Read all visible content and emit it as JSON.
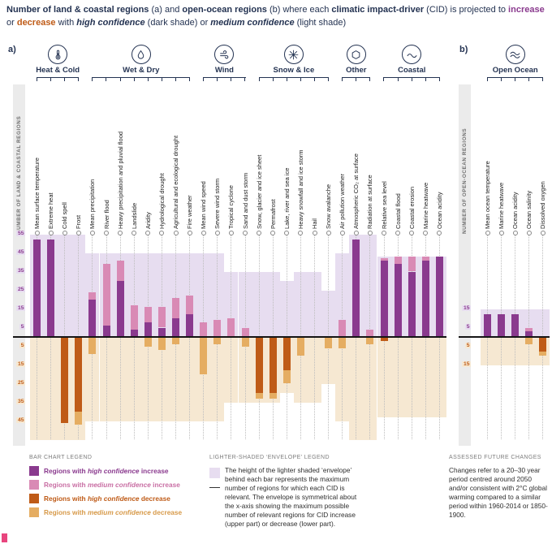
{
  "title": {
    "segments": [
      {
        "text": "Number of land & coastal regions",
        "style": "bold"
      },
      {
        "text": " (a) and ",
        "style": "regular"
      },
      {
        "text": "open-ocean regions",
        "style": "bold"
      },
      {
        "text": " (b) where each ",
        "style": "regular"
      },
      {
        "text": "climatic impact-driver",
        "style": "bold"
      },
      {
        "text": " (CID) is projected to ",
        "style": "regular"
      },
      {
        "text": "increase",
        "style": "bold-purple"
      },
      {
        "text": " or ",
        "style": "regular"
      },
      {
        "text": "decrease",
        "style": "bold-orange"
      },
      {
        "text": " with ",
        "style": "regular"
      },
      {
        "text": "high confidence",
        "style": "bold-italic"
      },
      {
        "text": " (dark shade) or ",
        "style": "regular"
      },
      {
        "text": "medium confidence",
        "style": "bold-italic"
      },
      {
        "text": " (light shade)",
        "style": "regular"
      }
    ]
  },
  "panels": {
    "a": {
      "label": "a)",
      "axis_label": "NUMBER OF LAND & COASTAL REGIONS"
    },
    "b": {
      "label": "b)",
      "axis_label": "NUMBER OF OPEN-OCEAN REGIONS"
    }
  },
  "colors": {
    "increase_high": "#8a3a8e",
    "increase_medium": "#d98ab5",
    "increase_envelope": "#e7ddf0",
    "decrease_high": "#bf5b17",
    "decrease_medium": "#e5ad62",
    "decrease_envelope": "#f6e8d2",
    "title_navy": "#243352"
  },
  "chart_data": {
    "type": "bar",
    "title": "Number of land & coastal regions (a) and open-ocean regions (b) where each climatic impact-driver (CID) is projected to increase or decrease with high confidence (dark shade) or medium confidence (light shade)",
    "units": "number of regions",
    "legend_position": "bottom",
    "y_axis": {
      "panel_a_upper_ticks": [
        55,
        45,
        35,
        25,
        15,
        5
      ],
      "panel_a_lower_ticks": [
        5,
        15,
        25,
        35,
        45
      ],
      "panel_b_upper_ticks": [
        15,
        5
      ],
      "panel_b_lower_ticks": [
        5,
        15
      ]
    },
    "panel_a": {
      "ylabel": "NUMBER OF LAND & COASTAL REGIONS",
      "groups": [
        {
          "name": "Heat & Cold",
          "icon": "thermometer-icon",
          "cids": [
            {
              "label": "Mean surface temperature",
              "increase_high": 52,
              "increase_medium_total": 52,
              "decrease_high": 0,
              "decrease_medium_total": 0,
              "envelope": 55
            },
            {
              "label": "Extreme heat",
              "increase_high": 52,
              "increase_medium_total": 52,
              "decrease_high": 0,
              "decrease_medium_total": 0,
              "envelope": 55
            },
            {
              "label": "Cold spell",
              "increase_high": 0,
              "increase_medium_total": 0,
              "decrease_high": 46,
              "decrease_medium_total": 46,
              "envelope": 55
            },
            {
              "label": "Frost",
              "increase_high": 0,
              "increase_medium_total": 0,
              "decrease_high": 40,
              "decrease_medium_total": 47,
              "envelope": 55
            }
          ]
        },
        {
          "name": "Wet & Dry",
          "icon": "droplet-icon",
          "cids": [
            {
              "label": "Mean precipitation",
              "increase_high": 20,
              "increase_medium_total": 24,
              "decrease_high": 0,
              "decrease_medium_total": 9,
              "envelope": 45
            },
            {
              "label": "River flood",
              "increase_high": 6,
              "increase_medium_total": 39,
              "decrease_high": 0,
              "decrease_medium_total": 0,
              "envelope": 45
            },
            {
              "label": "Heavy precipitation and pluvial flood",
              "increase_high": 30,
              "increase_medium_total": 41,
              "decrease_high": 0,
              "decrease_medium_total": 0,
              "envelope": 45
            },
            {
              "label": "Landslide",
              "increase_high": 4,
              "increase_medium_total": 17,
              "decrease_high": 0,
              "decrease_medium_total": 0,
              "envelope": 45
            },
            {
              "label": "Aridity",
              "increase_high": 8,
              "increase_medium_total": 16,
              "decrease_high": 0,
              "decrease_medium_total": 5,
              "envelope": 45
            },
            {
              "label": "Hydrological drought",
              "increase_high": 5,
              "increase_medium_total": 16,
              "decrease_high": 0,
              "decrease_medium_total": 7,
              "envelope": 45
            },
            {
              "label": "Agricultural and ecological drought",
              "increase_high": 10,
              "increase_medium_total": 21,
              "decrease_high": 0,
              "decrease_medium_total": 4,
              "envelope": 45
            },
            {
              "label": "Fire weather",
              "increase_high": 12,
              "increase_medium_total": 22,
              "decrease_high": 0,
              "decrease_medium_total": 0,
              "envelope": 45
            }
          ]
        },
        {
          "name": "Wind",
          "icon": "wind-icon",
          "cids": [
            {
              "label": "Mean wind speed",
              "increase_high": 0,
              "increase_medium_total": 8,
              "decrease_high": 0,
              "decrease_medium_total": 20,
              "envelope": 45
            },
            {
              "label": "Severe wind storm",
              "increase_high": 0,
              "increase_medium_total": 9,
              "decrease_high": 0,
              "decrease_medium_total": 4,
              "envelope": 45
            },
            {
              "label": "Tropical cyclone",
              "increase_high": 0,
              "increase_medium_total": 10,
              "decrease_high": 0,
              "decrease_medium_total": 0,
              "envelope": 35
            },
            {
              "label": "Sand and dust storm",
              "increase_high": 0,
              "increase_medium_total": 5,
              "decrease_high": 0,
              "decrease_medium_total": 5,
              "envelope": 35
            }
          ]
        },
        {
          "name": "Snow & Ice",
          "icon": "snowflake-icon",
          "cids": [
            {
              "label": "Snow, glacier and ice sheet",
              "increase_high": 0,
              "increase_medium_total": 0,
              "decrease_high": 30,
              "decrease_medium_total": 33,
              "envelope": 35
            },
            {
              "label": "Permafrost",
              "increase_high": 0,
              "increase_medium_total": 0,
              "decrease_high": 30,
              "decrease_medium_total": 33,
              "envelope": 35
            },
            {
              "label": "Lake, river and sea ice",
              "increase_high": 0,
              "increase_medium_total": 0,
              "decrease_high": 18,
              "decrease_medium_total": 25,
              "envelope": 30
            },
            {
              "label": "Heavy snowfall and ice storm",
              "increase_high": 0,
              "increase_medium_total": 0,
              "decrease_high": 0,
              "decrease_medium_total": 10,
              "envelope": 35
            },
            {
              "label": "Hail",
              "increase_high": 0,
              "increase_medium_total": 0,
              "decrease_high": 0,
              "decrease_medium_total": 0,
              "envelope": 35
            },
            {
              "label": "Snow avalanche",
              "increase_high": 0,
              "increase_medium_total": 0,
              "decrease_high": 0,
              "decrease_medium_total": 6,
              "envelope": 25
            }
          ]
        },
        {
          "name": "Other",
          "icon": "hexagon-icon",
          "cids": [
            {
              "label": "Air pollution weather",
              "increase_high": 0,
              "increase_medium_total": 9,
              "decrease_high": 0,
              "decrease_medium_total": 6,
              "envelope": 45
            },
            {
              "label": "Atmospheric CO₂ at surface",
              "increase_high": 52,
              "increase_medium_total": 52,
              "decrease_high": 0,
              "decrease_medium_total": 0,
              "envelope": 55
            },
            {
              "label": "Radiation at surface",
              "increase_high": 0,
              "increase_medium_total": 4,
              "decrease_high": 0,
              "decrease_medium_total": 4,
              "envelope": 55
            }
          ]
        },
        {
          "name": "Coastal",
          "icon": "wave-icon",
          "cids": [
            {
              "label": "Relative sea level",
              "increase_high": 41,
              "increase_medium_total": 42,
              "decrease_high": 2,
              "decrease_medium_total": 2,
              "envelope": 43
            },
            {
              "label": "Coastal flood",
              "increase_high": 39,
              "increase_medium_total": 43,
              "decrease_high": 0,
              "decrease_medium_total": 0,
              "envelope": 43
            },
            {
              "label": "Coastal erosion",
              "increase_high": 35,
              "increase_medium_total": 43,
              "decrease_high": 0,
              "decrease_medium_total": 0,
              "envelope": 43
            },
            {
              "label": "Marine heatwave",
              "increase_high": 41,
              "increase_medium_total": 43,
              "decrease_high": 0,
              "decrease_medium_total": 0,
              "envelope": 43
            },
            {
              "label": "Ocean acidity",
              "increase_high": 43,
              "increase_medium_total": 43,
              "decrease_high": 0,
              "decrease_medium_total": 0,
              "envelope": 43
            }
          ]
        }
      ]
    },
    "panel_b": {
      "ylabel": "NUMBER OF OPEN-OCEAN REGIONS",
      "groups": [
        {
          "name": "Open Ocean",
          "icon": "waves-icon",
          "cids": [
            {
              "label": "Mean ocean temperature",
              "increase_high": 12,
              "increase_medium_total": 12,
              "decrease_high": 0,
              "decrease_medium_total": 0,
              "envelope": 15
            },
            {
              "label": "Marine heatwave",
              "increase_high": 12,
              "increase_medium_total": 12,
              "decrease_high": 0,
              "decrease_medium_total": 0,
              "envelope": 15
            },
            {
              "label": "Ocean acidity",
              "increase_high": 12,
              "increase_medium_total": 12,
              "decrease_high": 0,
              "decrease_medium_total": 0,
              "envelope": 15
            },
            {
              "label": "Ocean salinity",
              "increase_high": 3,
              "increase_medium_total": 5,
              "decrease_high": 0,
              "decrease_medium_total": 4,
              "envelope": 15
            },
            {
              "label": "Dissolved oxygen",
              "increase_high": 0,
              "increase_medium_total": 0,
              "decrease_high": 8,
              "decrease_medium_total": 10,
              "envelope": 15
            }
          ]
        }
      ]
    }
  },
  "legend": {
    "bar_chart": {
      "header": "BAR CHART LEGEND",
      "items": [
        {
          "prefix": "Regions with ",
          "emphasis": "high confidence",
          "suffix": " increase",
          "swatch": "#8a3a8e",
          "text_color": "#8a3a8e"
        },
        {
          "prefix": "Regions with ",
          "emphasis": "medium confidence",
          "suffix": " increase",
          "swatch": "#d98ab5",
          "text_color": "#c96fa4"
        },
        {
          "prefix": "Regions with ",
          "emphasis": "high confidence",
          "suffix": " decrease",
          "swatch": "#bf5b17",
          "text_color": "#bf5b17"
        },
        {
          "prefix": "Regions with ",
          "emphasis": "medium confidence",
          "suffix": " decrease",
          "swatch": "#e5ad62",
          "text_color": "#d79a4a"
        }
      ]
    },
    "envelope": {
      "header": "LIGHTER-SHADED ‘ENVELOPE’ LEGEND",
      "text": "The height of the lighter shaded ‘envelope’ behind each bar represents the maximum number of regions for which each CID is relevant. The envelope is symmetrical about the x-axis showing the maximum possible number of relevant regions for CID increase (upper part) or decrease (lower part)."
    },
    "assessed": {
      "header": "ASSESSED FUTURE CHANGES",
      "text": "Changes refer to a 20–30 year period centred around 2050 and/or consistent with 2°C global warming compared to a similar period within 1960-2014 or 1850-1900."
    }
  }
}
